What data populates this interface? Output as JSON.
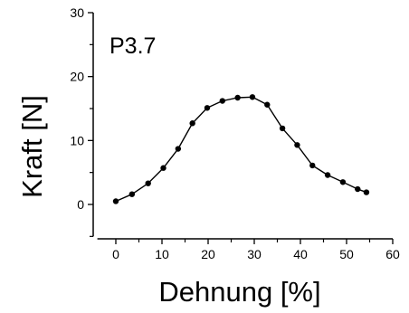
{
  "chart_data": {
    "type": "line",
    "title": "",
    "panel_label": "P3.7",
    "xlabel": "Dehnung [%]",
    "ylabel": "Kraft [N]",
    "xlim": [
      -4,
      60
    ],
    "ylim": [
      -5,
      30
    ],
    "x_ticks": [
      0,
      10,
      20,
      30,
      40,
      50,
      60
    ],
    "y_ticks": [
      0,
      10,
      20,
      30
    ],
    "x_minor_ticks": [
      -5,
      5,
      15,
      25,
      35,
      45,
      55
    ],
    "y_minor_ticks": [
      -5,
      5,
      15,
      25
    ],
    "grid": false,
    "legend": "none",
    "colors": {
      "line": "#000000",
      "point": "#000000",
      "axis": "#000000"
    },
    "series": [
      {
        "x": [
          0,
          3.5,
          7,
          10.3,
          13.5,
          16.6,
          19.8,
          23.1,
          26.4,
          29.6,
          32.8,
          36.1,
          39.3,
          42.6,
          45.9,
          49.2,
          52.4,
          54.3
        ],
        "y": [
          0.5,
          1.6,
          3.3,
          5.7,
          8.7,
          12.7,
          15.1,
          16.2,
          16.7,
          16.8,
          15.6,
          11.9,
          9.3,
          6.1,
          4.6,
          3.5,
          2.4,
          1.9
        ]
      }
    ]
  }
}
